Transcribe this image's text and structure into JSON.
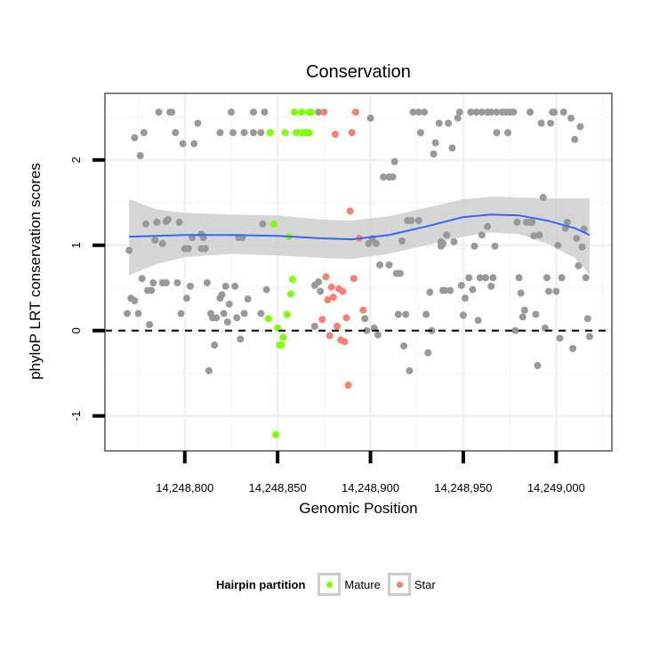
{
  "chart_data": {
    "type": "scatter",
    "title": "Conservation",
    "xlabel": "Genomic Position",
    "ylabel": "phyloP LRT conservation scores",
    "xlim": [
      14248757,
      14249030
    ],
    "ylim": [
      -1.41,
      2.78
    ],
    "x_ticks": [
      14248800,
      14248850,
      14248900,
      14248950,
      14249000
    ],
    "x_tick_labels": [
      "14,248,800",
      "14,248,850",
      "14,248,900",
      "14,248,950",
      "14,249,000"
    ],
    "y_ticks": [
      2,
      1,
      0,
      -1
    ],
    "y_tick_labels": [
      "2",
      "1",
      "0",
      "-1"
    ],
    "hline": {
      "y": 0,
      "style": "dashed",
      "color": "#000000"
    },
    "grid": true,
    "legend": {
      "title": "Hairpin partition",
      "position": "bottom",
      "entries": [
        {
          "label": "Mature",
          "color": "#7FFF00"
        },
        {
          "label": "Star",
          "color": "#FA8072"
        }
      ]
    },
    "colors": {
      "other": "#999999",
      "Mature": "#7FFF00",
      "Star": "#FA8072",
      "smooth": "#3366FF",
      "band": "#cccccc"
    },
    "series": [
      {
        "name": "Other",
        "points": [
          [
            14248786,
            2.56
          ],
          [
            14248792,
            2.56
          ],
          [
            14248793,
            2.56
          ],
          [
            14248825,
            2.56
          ],
          [
            14248837,
            2.56
          ],
          [
            14248843,
            2.56
          ],
          [
            14248872,
            2.56
          ],
          [
            14248923,
            2.56
          ],
          [
            14248926,
            2.56
          ],
          [
            14248929,
            2.56
          ],
          [
            14248948,
            2.56
          ],
          [
            14248954,
            2.56
          ],
          [
            14248957,
            2.56
          ],
          [
            14248960,
            2.56
          ],
          [
            14248963,
            2.56
          ],
          [
            14248965,
            2.56
          ],
          [
            14248968,
            2.56
          ],
          [
            14248971,
            2.56
          ],
          [
            14248973,
            2.56
          ],
          [
            14248975,
            2.56
          ],
          [
            14248977,
            2.56
          ],
          [
            14248986,
            2.56
          ],
          [
            14248998,
            2.56
          ],
          [
            14248999,
            2.56
          ],
          [
            14249004,
            2.56
          ],
          [
            14248900,
            2.49
          ],
          [
            14248947,
            2.49
          ],
          [
            14249008,
            2.49
          ],
          [
            14248807,
            2.43
          ],
          [
            14248937,
            2.43
          ],
          [
            14248942,
            2.43
          ],
          [
            14248992,
            2.43
          ],
          [
            14248997,
            2.43
          ],
          [
            14249013,
            2.39
          ],
          [
            14248778,
            2.32
          ],
          [
            14248795,
            2.32
          ],
          [
            14248819,
            2.32
          ],
          [
            14248826,
            2.32
          ],
          [
            14248832,
            2.32
          ],
          [
            14248837,
            2.32
          ],
          [
            14248841,
            2.32
          ],
          [
            14248927,
            2.32
          ],
          [
            14248968,
            2.32
          ],
          [
            14248974,
            2.32
          ],
          [
            14248773,
            2.26
          ],
          [
            14249010,
            2.24
          ],
          [
            14248799,
            2.19
          ],
          [
            14248805,
            2.19
          ],
          [
            14248935,
            2.2
          ],
          [
            14248944,
            2.14
          ],
          [
            14248934,
            2.07
          ],
          [
            14248776,
            2.05
          ],
          [
            14248913,
            1.98
          ],
          [
            14248907,
            1.8
          ],
          [
            14248910,
            1.8
          ],
          [
            14248912,
            1.8
          ],
          [
            14248993,
            1.56
          ],
          [
            14248920,
            1.29
          ],
          [
            14248922,
            1.29
          ],
          [
            14248926,
            1.29
          ],
          [
            14248979,
            1.27
          ],
          [
            14248984,
            1.27
          ],
          [
            14248986,
            1.27
          ],
          [
            14248987,
            1.27
          ],
          [
            14249006,
            1.27
          ],
          [
            14248963,
            1.22
          ],
          [
            14249005,
            1.2
          ],
          [
            14249015,
            1.19
          ],
          [
            14248779,
            1.25
          ],
          [
            14248785,
            1.27
          ],
          [
            14248790,
            1.28
          ],
          [
            14248791,
            1.3
          ],
          [
            14248797,
            1.27
          ],
          [
            14248842,
            1.25
          ],
          [
            14248804,
            1.09
          ],
          [
            14248810,
            1.09
          ],
          [
            14248829,
            1.09
          ],
          [
            14248831,
            1.09
          ],
          [
            14248809,
            1.13
          ],
          [
            14248784,
            1.06
          ],
          [
            14248788,
            1.02
          ],
          [
            14248770,
            0.94
          ],
          [
            14248800,
            0.96
          ],
          [
            14248802,
            0.96
          ],
          [
            14248809,
            0.96
          ],
          [
            14248811,
            0.96
          ],
          [
            14248941,
            1.12
          ],
          [
            14248960,
            1.12
          ],
          [
            14248991,
            1.12
          ],
          [
            14248988,
            1.11
          ],
          [
            14249011,
            1.08
          ],
          [
            14248938,
            1.04
          ],
          [
            14248945,
            1.04
          ],
          [
            14248938,
            0.99
          ],
          [
            14248956,
            0.99
          ],
          [
            14248967,
            0.99
          ],
          [
            14249001,
            1.0
          ],
          [
            14249014,
            0.98
          ],
          [
            14248901,
            1.08
          ],
          [
            14248899,
            1.02
          ],
          [
            14248903,
            1.02
          ],
          [
            14248917,
            1.05
          ],
          [
            14248939,
            1.02
          ],
          [
            14248905,
            0.77
          ],
          [
            14248910,
            0.77
          ],
          [
            14248914,
            0.67
          ],
          [
            14248916,
            0.67
          ],
          [
            14249012,
            0.76
          ],
          [
            14248777,
            0.61
          ],
          [
            14248783,
            0.56
          ],
          [
            14248788,
            0.56
          ],
          [
            14248790,
            0.56
          ],
          [
            14248796,
            0.56
          ],
          [
            14248812,
            0.56
          ],
          [
            14248780,
            0.47
          ],
          [
            14248782,
            0.47
          ],
          [
            14248803,
            0.52
          ],
          [
            14248822,
            0.52
          ],
          [
            14248827,
            0.52
          ],
          [
            14248844,
            0.48
          ],
          [
            14248771,
            0.38
          ],
          [
            14248773,
            0.35
          ],
          [
            14248801,
            0.38
          ],
          [
            14248819,
            0.38
          ],
          [
            14248820,
            0.42
          ],
          [
            14248824,
            0.31
          ],
          [
            14248834,
            0.37
          ],
          [
            14248769,
            0.2
          ],
          [
            14248775,
            0.2
          ],
          [
            14248798,
            0.2
          ],
          [
            14248814,
            0.2
          ],
          [
            14248821,
            0.2
          ],
          [
            14248832,
            0.2
          ],
          [
            14248841,
            0.2
          ],
          [
            14248815,
            0.15
          ],
          [
            14248817,
            0.15
          ],
          [
            14248828,
            0.15
          ],
          [
            14248823,
            0.1
          ],
          [
            14248781,
            0.07
          ],
          [
            14248830,
            -0.1
          ],
          [
            14248816,
            -0.17
          ],
          [
            14248813,
            -0.47
          ],
          [
            14248870,
            0.53
          ],
          [
            14248872,
            0.57
          ],
          [
            14248873,
            0.46
          ],
          [
            14248870,
            0.05
          ],
          [
            14248897,
            0.14
          ],
          [
            14248898,
            0.0
          ],
          [
            14248902,
            0.03
          ],
          [
            14248904,
            -0.05
          ],
          [
            14248915,
            0.19
          ],
          [
            14248919,
            0.19
          ],
          [
            14248918,
            -0.18
          ],
          [
            14248921,
            -0.47
          ],
          [
            14248930,
            0.19
          ],
          [
            14248933,
            0.0
          ],
          [
            14248931,
            -0.26
          ],
          [
            14248932,
            0.45
          ],
          [
            14248939,
            0.47
          ],
          [
            14248953,
            0.62
          ],
          [
            14248959,
            0.62
          ],
          [
            14248962,
            0.62
          ],
          [
            14248966,
            0.62
          ],
          [
            14248980,
            0.62
          ],
          [
            14248995,
            0.62
          ],
          [
            14249003,
            0.62
          ],
          [
            14249016,
            0.62
          ],
          [
            14248949,
            0.53
          ],
          [
            14248955,
            0.48
          ],
          [
            14248965,
            0.52
          ],
          [
            14248940,
            0.47
          ],
          [
            14248943,
            0.47
          ],
          [
            14248951,
            0.38
          ],
          [
            14248981,
            0.44
          ],
          [
            14248996,
            0.46
          ],
          [
            14249000,
            0.46
          ],
          [
            14248950,
            0.18
          ],
          [
            14248958,
            0.12
          ],
          [
            14248983,
            0.24
          ],
          [
            14248982,
            0.16
          ],
          [
            14248989,
            0.19
          ],
          [
            14249017,
            0.14
          ],
          [
            14248978,
            0.0
          ],
          [
            14248994,
            0.03
          ],
          [
            14249002,
            -0.09
          ],
          [
            14249018,
            -0.07
          ],
          [
            14249009,
            -0.21
          ],
          [
            14248990,
            -0.41
          ]
        ]
      },
      {
        "name": "Mature",
        "points": [
          [
            14248859,
            2.56
          ],
          [
            14248863,
            2.56
          ],
          [
            14248867,
            2.56
          ],
          [
            14248868,
            2.56
          ],
          [
            14248846,
            2.32
          ],
          [
            14248854,
            2.32
          ],
          [
            14248860,
            2.32
          ],
          [
            14248863,
            2.32
          ],
          [
            14248865,
            2.32
          ],
          [
            14248867,
            2.32
          ],
          [
            14248848,
            1.25
          ],
          [
            14248856,
            1.1
          ],
          [
            14248858,
            0.6
          ],
          [
            14248857,
            0.43
          ],
          [
            14248855,
            0.19
          ],
          [
            14248845,
            0.14
          ],
          [
            14248850,
            0.03
          ],
          [
            14248853,
            -0.08
          ],
          [
            14248851,
            -0.17
          ],
          [
            14248852,
            -0.17
          ],
          [
            14248849,
            -1.22
          ]
        ]
      },
      {
        "name": "Star",
        "points": [
          [
            14248875,
            2.56
          ],
          [
            14248892,
            2.56
          ],
          [
            14248881,
            2.3
          ],
          [
            14248890,
            2.32
          ],
          [
            14248889,
            1.4
          ],
          [
            14248894,
            1.08
          ],
          [
            14248876,
            0.63
          ],
          [
            14248879,
            0.51
          ],
          [
            14248883,
            0.49
          ],
          [
            14248885,
            0.46
          ],
          [
            14248877,
            0.36
          ],
          [
            14248880,
            0.39
          ],
          [
            14248891,
            0.61
          ],
          [
            14248874,
            0.13
          ],
          [
            14248887,
            0.15
          ],
          [
            14248896,
            0.24
          ],
          [
            14248882,
            0.05
          ],
          [
            14248878,
            -0.06
          ],
          [
            14248884,
            -0.11
          ],
          [
            14248886,
            -0.13
          ],
          [
            14248888,
            -0.64
          ]
        ]
      }
    ],
    "smooth": {
      "x": [
        14248770,
        14248785,
        14248800,
        14248825,
        14248850,
        14248875,
        14248890,
        14248910,
        14248930,
        14248950,
        14248965,
        14248980,
        14248995,
        14249010,
        14249018
      ],
      "y": [
        1.1,
        1.11,
        1.12,
        1.12,
        1.11,
        1.08,
        1.07,
        1.12,
        1.22,
        1.33,
        1.36,
        1.35,
        1.29,
        1.2,
        1.12
      ],
      "upper": [
        1.54,
        1.42,
        1.38,
        1.36,
        1.35,
        1.3,
        1.29,
        1.34,
        1.44,
        1.54,
        1.57,
        1.56,
        1.55,
        1.55,
        1.55
      ],
      "lower": [
        0.65,
        0.78,
        0.86,
        0.9,
        0.88,
        0.85,
        0.84,
        0.9,
        1.0,
        1.1,
        1.15,
        1.13,
        1.02,
        0.85,
        0.66
      ]
    }
  }
}
